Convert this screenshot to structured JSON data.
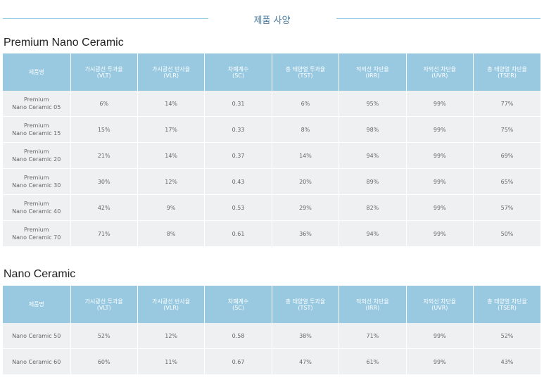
{
  "header": {
    "title": "제품 사양"
  },
  "columns": [
    {
      "name": "제품명",
      "abbr": ""
    },
    {
      "name": "가시광선 투과율",
      "abbr": "(VLT)"
    },
    {
      "name": "가시광선 반사율",
      "abbr": "(VLR)"
    },
    {
      "name": "차폐계수",
      "abbr": "(SC)"
    },
    {
      "name": "총 태양열 투과율",
      "abbr": "(TST)"
    },
    {
      "name": "적외선 차단율",
      "abbr": "(IRR)"
    },
    {
      "name": "자외선 차단율",
      "abbr": "(UVR)"
    },
    {
      "name": "총 태양열 차단율",
      "abbr": "(TSER)"
    }
  ],
  "sections": [
    {
      "title": "Premium Nano Ceramic",
      "rows": [
        {
          "name_line1": "Premium",
          "name_line2": "Nano Ceramic 05",
          "vlt": "6%",
          "vlr": "14%",
          "sc": "0.31",
          "tst": "6%",
          "irr": "95%",
          "uvr": "99%",
          "tser": "77%"
        },
        {
          "name_line1": "Premium",
          "name_line2": "Nano Ceramic 15",
          "vlt": "15%",
          "vlr": "17%",
          "sc": "0.33",
          "tst": "8%",
          "irr": "98%",
          "uvr": "99%",
          "tser": "75%"
        },
        {
          "name_line1": "Premium",
          "name_line2": "Nano Ceramic 20",
          "vlt": "21%",
          "vlr": "14%",
          "sc": "0.37",
          "tst": "14%",
          "irr": "94%",
          "uvr": "99%",
          "tser": "69%"
        },
        {
          "name_line1": "Premium",
          "name_line2": "Nano Ceramic 30",
          "vlt": "30%",
          "vlr": "12%",
          "sc": "0.43",
          "tst": "20%",
          "irr": "89%",
          "uvr": "99%",
          "tser": "65%"
        },
        {
          "name_line1": "Premium",
          "name_line2": "Nano Ceramic 40",
          "vlt": "42%",
          "vlr": "9%",
          "sc": "0.53",
          "tst": "29%",
          "irr": "82%",
          "uvr": "99%",
          "tser": "57%"
        },
        {
          "name_line1": "Premium",
          "name_line2": "Nano Ceramic 70",
          "vlt": "71%",
          "vlr": "8%",
          "sc": "0.61",
          "tst": "36%",
          "irr": "94%",
          "uvr": "99%",
          "tser": "50%"
        }
      ]
    },
    {
      "title": "Nano Ceramic",
      "rows": [
        {
          "name_line1": "Nano Ceramic 50",
          "name_line2": "",
          "vlt": "52%",
          "vlr": "12%",
          "sc": "0.58",
          "tst": "38%",
          "irr": "71%",
          "uvr": "99%",
          "tser": "52%"
        },
        {
          "name_line1": "Nano Ceramic 60",
          "name_line2": "",
          "vlt": "60%",
          "vlr": "11%",
          "sc": "0.67",
          "tst": "47%",
          "irr": "61%",
          "uvr": "99%",
          "tser": "43%"
        }
      ]
    }
  ]
}
